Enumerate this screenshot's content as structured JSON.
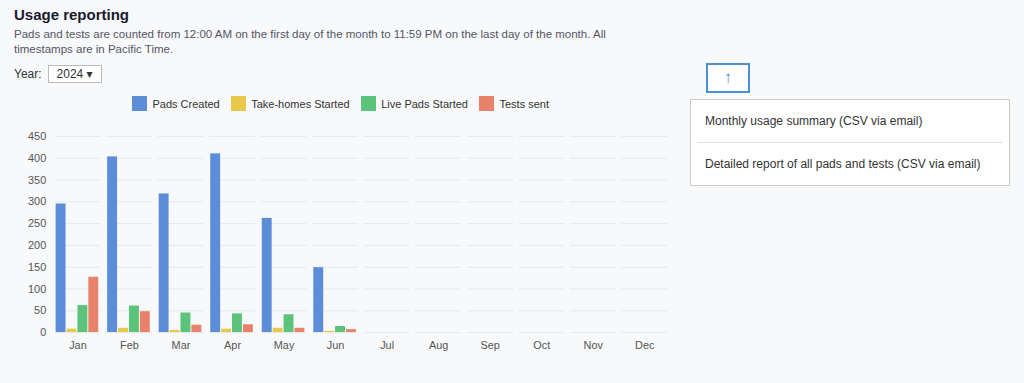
{
  "chart_data": {
    "type": "bar",
    "title": "Usage reporting",
    "subtitle": "Pads and tests are counted from 12:00 AM on the first day of the month to 11:59 PM on the last day of the month. All\ntimestamps are in Pacific Time.",
    "categories": [
      "Jan",
      "Feb",
      "Mar",
      "Apr",
      "May",
      "Jun",
      "Jul",
      "Aug",
      "Sep",
      "Oct",
      "Nov",
      "Dec"
    ],
    "series": [
      {
        "name": "Pads Created",
        "color": "#5b8dd9",
        "values": [
          295,
          403,
          318,
          410,
          262,
          149,
          0,
          0,
          0,
          0,
          0,
          0
        ]
      },
      {
        "name": "Take-homes Started",
        "color": "#e8c84a",
        "values": [
          8,
          10,
          5,
          8,
          10,
          3,
          0,
          0,
          0,
          0,
          0,
          0
        ]
      },
      {
        "name": "Live Pads Started",
        "color": "#5bc47a",
        "values": [
          62,
          61,
          45,
          43,
          41,
          14,
          0,
          0,
          0,
          0,
          0,
          0
        ]
      },
      {
        "name": "Tests sent",
        "color": "#e8826a",
        "values": [
          127,
          48,
          17,
          18,
          10,
          7,
          0,
          0,
          0,
          0,
          0,
          0
        ]
      }
    ],
    "ylim": [
      0,
      450
    ],
    "yticks": [
      0,
      50,
      100,
      150,
      200,
      250,
      300,
      350,
      400,
      450
    ],
    "grid": true,
    "legend": "top",
    "annotations": [
      {
        "text": "Year:"
      },
      {
        "text": "2024 ▾"
      },
      {
        "text": "↑",
        "color": "#4a90d9"
      },
      {
        "text": "Monthly usage summary (CSV via email)"
      },
      {
        "text": "Detailed report of all pads and tests (CSV via email)"
      }
    ]
  }
}
